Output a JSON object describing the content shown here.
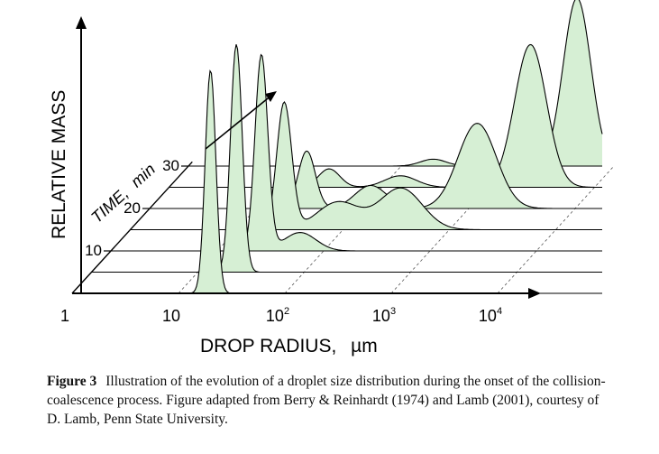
{
  "chart_data": {
    "type": "area",
    "chart_style": "3d waterfall",
    "xlabel": "DROP RADIUS,",
    "xlabel_unit": "µm",
    "ylabel": "RELATIVE MASS",
    "zlabel": "TIME,",
    "zlabel_unit": "min",
    "x_scale": "log",
    "x_ticks": [
      {
        "value": 1,
        "label": "1",
        "exp": ""
      },
      {
        "value": 10,
        "label": "10",
        "exp": ""
      },
      {
        "value": 100,
        "label": "10",
        "exp": "2"
      },
      {
        "value": 1000,
        "label": "10",
        "exp": "3"
      },
      {
        "value": 10000,
        "label": "10",
        "exp": "4"
      }
    ],
    "xlim": [
      1,
      100000
    ],
    "time_ticks": [
      {
        "value": 10,
        "label": "10"
      },
      {
        "value": 20,
        "label": "20"
      },
      {
        "value": 30,
        "label": "30"
      }
    ],
    "series": [
      {
        "time": 0,
        "peaks": [
          {
            "x": 20,
            "height": 0.97,
            "width": 0.05
          }
        ]
      },
      {
        "time": 5,
        "peaks": [
          {
            "x": 23,
            "height": 0.99,
            "width": 0.055
          }
        ]
      },
      {
        "time": 10,
        "peaks": [
          {
            "x": 26,
            "height": 0.85,
            "width": 0.06
          },
          {
            "x": 60,
            "height": 0.08,
            "width": 0.15
          }
        ]
      },
      {
        "time": 15,
        "peaks": [
          {
            "x": 28,
            "height": 0.55,
            "width": 0.07
          },
          {
            "x": 90,
            "height": 0.12,
            "width": 0.2
          },
          {
            "x": 350,
            "height": 0.18,
            "width": 0.2
          }
        ]
      },
      {
        "time": 20,
        "peaks": [
          {
            "x": 30,
            "height": 0.25,
            "width": 0.08
          },
          {
            "x": 120,
            "height": 0.1,
            "width": 0.15
          },
          {
            "x": 1200,
            "height": 0.37,
            "width": 0.18
          }
        ]
      },
      {
        "time": 25,
        "peaks": [
          {
            "x": 32,
            "height": 0.08,
            "width": 0.1
          },
          {
            "x": 150,
            "height": 0.05,
            "width": 0.15
          },
          {
            "x": 2500,
            "height": 0.62,
            "width": 0.15
          }
        ]
      },
      {
        "time": 30,
        "peaks": [
          {
            "x": 200,
            "height": 0.03,
            "width": 0.12
          },
          {
            "x": 4500,
            "height": 0.73,
            "width": 0.13
          }
        ]
      }
    ]
  },
  "caption": {
    "label": "Figure 3",
    "text": "Illustration of the evolution of a droplet size distribution during the onset of the collision-coalescence process. Figure adapted from Berry & Reinhardt (1974) and Lamb (2001), courtesy of D. Lamb, Penn State University."
  },
  "colors": {
    "fill": "#d6efd4",
    "line": "#000000"
  }
}
